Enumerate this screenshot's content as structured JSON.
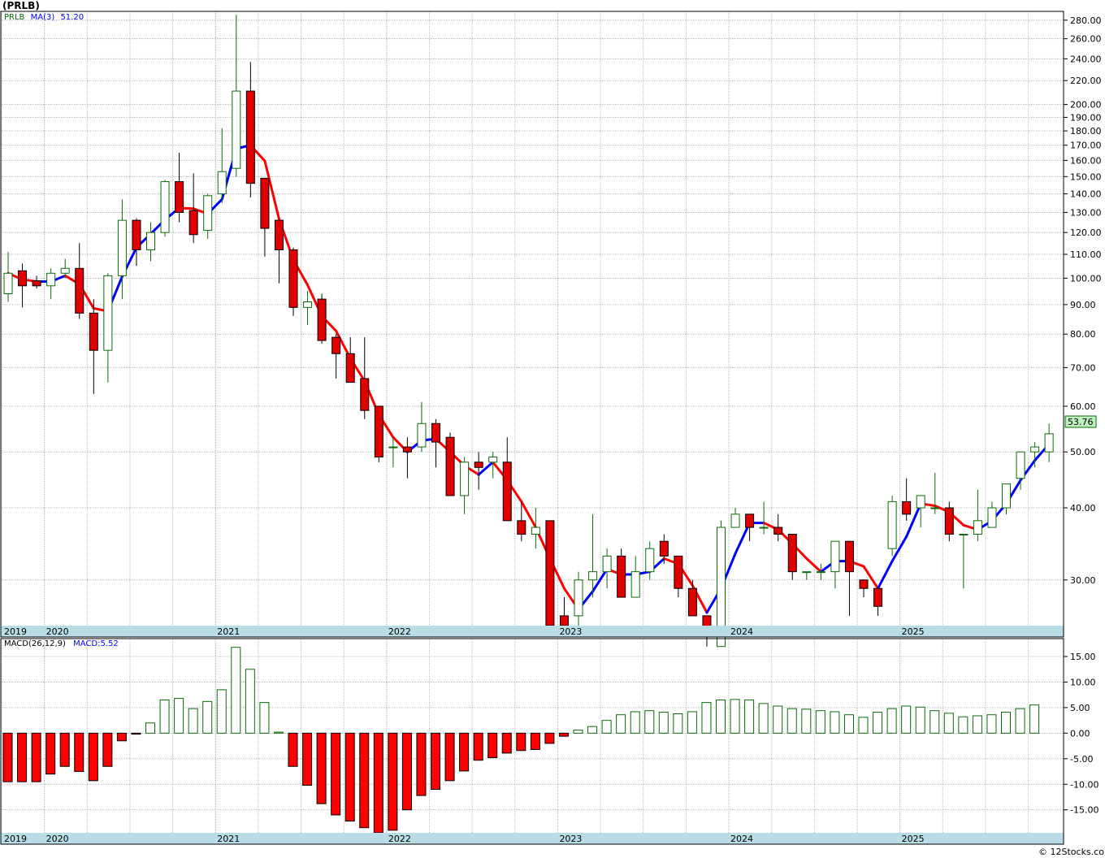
{
  "chart_data": {
    "type": "candlestick",
    "title": "(PRLB)",
    "source": "© 12Stocks.com",
    "x_labels": [
      "2019",
      "2020",
      "2021",
      "2022",
      "2023",
      "2024",
      "2025"
    ],
    "last_price_label": "53.76",
    "colors": {
      "up": "#0a6b0a",
      "down": "#e00000",
      "ma_up": "#0000ff",
      "ma_down": "#ff0000",
      "macd_up": "#0a6b0a",
      "macd_down": "#ff0000",
      "axis_band": "#b9dde6",
      "last_price_bg": "#bff0bf"
    },
    "price_panel": {
      "scale": "log",
      "ylim": [
        25,
        290
      ],
      "ticks": [
        30,
        40,
        50,
        60,
        70,
        80,
        90,
        100,
        110,
        120,
        130,
        140,
        150,
        160,
        170,
        180,
        190,
        200,
        220,
        240,
        260,
        280
      ],
      "tick_labels": [
        "30.00",
        "40.00",
        "50.00",
        "60.00",
        "70.00",
        "80.00",
        "90.00",
        "100.00",
        "110.00",
        "120.00",
        "130.00",
        "140.00",
        "150.00",
        "160.00",
        "170.00",
        "180.00",
        "190.00",
        "200.00",
        "220.00",
        "240.00",
        "260.00",
        "280.00"
      ],
      "legend": {
        "symbol": "PRLB",
        "ma_label": "MA(3)",
        "ma_value": "51.20"
      }
    },
    "macd_panel": {
      "ylim": [
        -19.5,
        18.5
      ],
      "ticks": [
        15,
        10,
        5,
        0,
        -5,
        -10,
        -15
      ],
      "tick_labels": [
        "15.00",
        "10.00",
        "5.00",
        "0.00",
        "-5.00",
        "-10.00",
        "-15.00"
      ],
      "legend": {
        "label": "MACD(26,12,9)",
        "value_label": "MACD:5.52"
      }
    },
    "candles": [
      {
        "date": "2019-10",
        "o": 94,
        "h": 111,
        "l": 91,
        "c": 102
      },
      {
        "date": "2019-11",
        "o": 103,
        "h": 106,
        "l": 89,
        "c": 97
      },
      {
        "date": "2019-12",
        "o": 99,
        "h": 101,
        "l": 96,
        "c": 97
      },
      {
        "date": "2020-01",
        "o": 97,
        "h": 104,
        "l": 92,
        "c": 102
      },
      {
        "date": "2020-02",
        "o": 102,
        "h": 108,
        "l": 100,
        "c": 104
      },
      {
        "date": "2020-03",
        "o": 104,
        "h": 115,
        "l": 85,
        "c": 87
      },
      {
        "date": "2020-04",
        "o": 87,
        "h": 92,
        "l": 63,
        "c": 75
      },
      {
        "date": "2020-05",
        "o": 75,
        "h": 102,
        "l": 66,
        "c": 101
      },
      {
        "date": "2020-06",
        "o": 101,
        "h": 137,
        "l": 92,
        "c": 126
      },
      {
        "date": "2020-07",
        "o": 126,
        "h": 127,
        "l": 105,
        "c": 112
      },
      {
        "date": "2020-08",
        "o": 112,
        "h": 125,
        "l": 107,
        "c": 120
      },
      {
        "date": "2020-09",
        "o": 120,
        "h": 148,
        "l": 118,
        "c": 147
      },
      {
        "date": "2020-10",
        "o": 147,
        "h": 165,
        "l": 125,
        "c": 130
      },
      {
        "date": "2020-11",
        "o": 131,
        "h": 152,
        "l": 115,
        "c": 119
      },
      {
        "date": "2020-12",
        "o": 121,
        "h": 140,
        "l": 117,
        "c": 139
      },
      {
        "date": "2021-01",
        "o": 140,
        "h": 182,
        "l": 135,
        "c": 153
      },
      {
        "date": "2021-02",
        "o": 155,
        "h": 286,
        "l": 150,
        "c": 211
      },
      {
        "date": "2021-03",
        "o": 211,
        "h": 237,
        "l": 138,
        "c": 146
      },
      {
        "date": "2021-04",
        "o": 149,
        "h": 149,
        "l": 109,
        "c": 122
      },
      {
        "date": "2021-05",
        "o": 126,
        "h": 126,
        "l": 98,
        "c": 112
      },
      {
        "date": "2021-06",
        "o": 112,
        "h": 113,
        "l": 86,
        "c": 89
      },
      {
        "date": "2021-07",
        "o": 89,
        "h": 95,
        "l": 83,
        "c": 91
      },
      {
        "date": "2021-08",
        "o": 92,
        "h": 94,
        "l": 77,
        "c": 78
      },
      {
        "date": "2021-09",
        "o": 79,
        "h": 80,
        "l": 67,
        "c": 74
      },
      {
        "date": "2021-10",
        "o": 74,
        "h": 79,
        "l": 66,
        "c": 66
      },
      {
        "date": "2021-11",
        "o": 67,
        "h": 79,
        "l": 57,
        "c": 59
      },
      {
        "date": "2021-12",
        "o": 60,
        "h": 60,
        "l": 48,
        "c": 49
      },
      {
        "date": "2022-01",
        "o": 51,
        "h": 53,
        "l": 47,
        "c": 51
      },
      {
        "date": "2022-02",
        "o": 51,
        "h": 53,
        "l": 45,
        "c": 50
      },
      {
        "date": "2022-03",
        "o": 51,
        "h": 61,
        "l": 50,
        "c": 56
      },
      {
        "date": "2022-04",
        "o": 56,
        "h": 57,
        "l": 47,
        "c": 52
      },
      {
        "date": "2022-05",
        "o": 53,
        "h": 54,
        "l": 42,
        "c": 42
      },
      {
        "date": "2022-06",
        "o": 42,
        "h": 49,
        "l": 39,
        "c": 48
      },
      {
        "date": "2022-07",
        "o": 48,
        "h": 50,
        "l": 43,
        "c": 47
      },
      {
        "date": "2022-08",
        "o": 48,
        "h": 50,
        "l": 45,
        "c": 49
      },
      {
        "date": "2022-09",
        "o": 48,
        "h": 53,
        "l": 38,
        "c": 38
      },
      {
        "date": "2022-10",
        "o": 38,
        "h": 41,
        "l": 35,
        "c": 36
      },
      {
        "date": "2022-11",
        "o": 36,
        "h": 40,
        "l": 34,
        "c": 37
      },
      {
        "date": "2022-12",
        "o": 38,
        "h": 38,
        "l": 24,
        "c": 25
      },
      {
        "date": "2023-01",
        "o": 26,
        "h": 28,
        "l": 24,
        "c": 25
      },
      {
        "date": "2023-02",
        "o": 26,
        "h": 31,
        "l": 25,
        "c": 30
      },
      {
        "date": "2023-03",
        "o": 30,
        "h": 39,
        "l": 28,
        "c": 31
      },
      {
        "date": "2023-04",
        "o": 31,
        "h": 34,
        "l": 29,
        "c": 33
      },
      {
        "date": "2023-05",
        "o": 33,
        "h": 34,
        "l": 28,
        "c": 28
      },
      {
        "date": "2023-06",
        "o": 28,
        "h": 33,
        "l": 28,
        "c": 31
      },
      {
        "date": "2023-07",
        "o": 31,
        "h": 35,
        "l": 30,
        "c": 34
      },
      {
        "date": "2023-08",
        "o": 35,
        "h": 36,
        "l": 32,
        "c": 33
      },
      {
        "date": "2023-09",
        "o": 33,
        "h": 33,
        "l": 28,
        "c": 29
      },
      {
        "date": "2023-10",
        "o": 29,
        "h": 30,
        "l": 26,
        "c": 26
      },
      {
        "date": "2023-11",
        "o": 26,
        "h": 26,
        "l": 23,
        "c": 24
      },
      {
        "date": "2023-12",
        "o": 23,
        "h": 38,
        "l": 23,
        "c": 37
      },
      {
        "date": "2024-01",
        "o": 37,
        "h": 40,
        "l": 37,
        "c": 39
      },
      {
        "date": "2024-02",
        "o": 39,
        "h": 39,
        "l": 35,
        "c": 37
      },
      {
        "date": "2024-03",
        "o": 37,
        "h": 41,
        "l": 36,
        "c": 37
      },
      {
        "date": "2024-04",
        "o": 37,
        "h": 39,
        "l": 35,
        "c": 36
      },
      {
        "date": "2024-05",
        "o": 36,
        "h": 36,
        "l": 30,
        "c": 31
      },
      {
        "date": "2024-06",
        "o": 31,
        "h": 31,
        "l": 30,
        "c": 31
      },
      {
        "date": "2024-07",
        "o": 31,
        "h": 32,
        "l": 30,
        "c": 31
      },
      {
        "date": "2024-08",
        "o": 31,
        "h": 35,
        "l": 29,
        "c": 35
      },
      {
        "date": "2024-09",
        "o": 35,
        "h": 35,
        "l": 26,
        "c": 31
      },
      {
        "date": "2024-10",
        "o": 30,
        "h": 30,
        "l": 28,
        "c": 29
      },
      {
        "date": "2024-11",
        "o": 29,
        "h": 29,
        "l": 26,
        "c": 27
      },
      {
        "date": "2024-12",
        "o": 34,
        "h": 42,
        "l": 33,
        "c": 41
      },
      {
        "date": "2025-01",
        "o": 41,
        "h": 45,
        "l": 38,
        "c": 39
      },
      {
        "date": "2025-02",
        "o": 40,
        "h": 41,
        "l": 37,
        "c": 42
      },
      {
        "date": "2025-03",
        "o": 40,
        "h": 46,
        "l": 39,
        "c": 40
      },
      {
        "date": "2025-04",
        "o": 40,
        "h": 41,
        "l": 35,
        "c": 36
      },
      {
        "date": "2025-05",
        "o": 36,
        "h": 36,
        "l": 29,
        "c": 36
      },
      {
        "date": "2025-06",
        "o": 36,
        "h": 43,
        "l": 35,
        "c": 38
      },
      {
        "date": "2025-07",
        "o": 37,
        "h": 41,
        "l": 37,
        "c": 40
      },
      {
        "date": "2025-08",
        "o": 40,
        "h": 44,
        "l": 39,
        "c": 44
      },
      {
        "date": "2025-09",
        "o": 45,
        "h": 50,
        "l": 43,
        "c": 50
      },
      {
        "date": "2025-10",
        "o": 50,
        "h": 52,
        "l": 47,
        "c": 51
      },
      {
        "date": "2025-11",
        "o": 50,
        "h": 56,
        "l": 48,
        "c": 53.76
      }
    ],
    "macd_histogram": [
      -9.5,
      -9.5,
      -9.5,
      -8,
      -6.5,
      -7.5,
      -9.3,
      -6.5,
      -1.5,
      -0.2,
      2,
      6.5,
      6.8,
      4.8,
      6.2,
      8.5,
      16.8,
      12.5,
      6,
      0.2,
      -6.5,
      -10.2,
      -13.8,
      -16,
      -17.2,
      -18.5,
      -19.5,
      -19,
      -15,
      -12.2,
      -11,
      -9.3,
      -7.4,
      -5.3,
      -4.8,
      -3.9,
      -3.4,
      -3.2,
      -2,
      -0.6,
      0.6,
      1.3,
      2.5,
      3.6,
      4.2,
      4.4,
      4.1,
      3.8,
      4.2,
      6,
      6.5,
      6.6,
      6.5,
      5.8,
      5.3,
      4.8,
      4.7,
      4.4,
      4.2,
      3.6,
      3.1,
      4.1,
      4.8,
      5.3,
      5.1,
      4.4,
      3.9,
      3.2,
      3.4,
      3.6,
      4.1,
      4.8,
      5.52
    ]
  }
}
